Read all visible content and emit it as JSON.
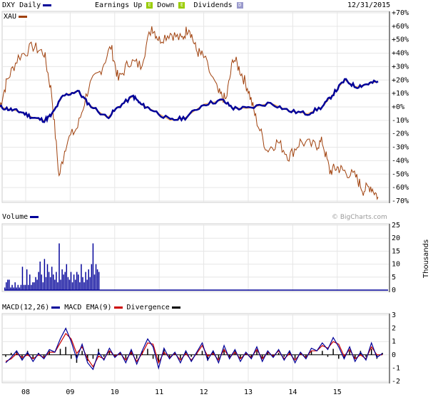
{
  "header": {
    "symbol": "DXY Daily",
    "earnings_up": "Earnings Up",
    "earnings_down": "Down",
    "dividends": "Dividends",
    "date": "12/31/2015",
    "earnings_glyph": "E",
    "dividend_glyph": "D",
    "compare": "XAU",
    "watermark": "© BigCharts.com"
  },
  "colors": {
    "dxy": "#000099",
    "xau": "#a0410d",
    "macd": "#000099",
    "ema": "#cc0000",
    "divergence": "#000000",
    "grid": "#e6e6e6",
    "earnings_up": "#99cc00",
    "dividend": "#9999cc"
  },
  "chart_data": [
    {
      "type": "line",
      "title": "",
      "y_unit": "%",
      "ylim": [
        -70,
        70
      ],
      "yticks": [
        "+70%",
        "+60%",
        "+50%",
        "+40%",
        "+30%",
        "+20%",
        "+10%",
        "+0%",
        "-10%",
        "-20%",
        "-30%",
        "-40%",
        "-50%",
        "-60%",
        "-70%"
      ],
      "grid": true,
      "x_ticks": [
        "08",
        "09",
        "10",
        "11",
        "12",
        "13",
        "14",
        "15"
      ],
      "x_range": [
        "2007-06",
        "2015-12"
      ],
      "series": [
        {
          "name": "DXY",
          "points": [
            [
              "2007-06",
              0
            ],
            [
              "2007-09",
              -2
            ],
            [
              "2007-12",
              -4
            ],
            [
              "2008-03",
              -8
            ],
            [
              "2008-06",
              -10
            ],
            [
              "2008-08",
              -6
            ],
            [
              "2008-11",
              8
            ],
            [
              "2009-03",
              12
            ],
            [
              "2009-06",
              2
            ],
            [
              "2009-11",
              -8
            ],
            [
              "2010-02",
              0
            ],
            [
              "2010-06",
              8
            ],
            [
              "2010-08",
              2
            ],
            [
              "2010-11",
              -2
            ],
            [
              "2011-04",
              -10
            ],
            [
              "2011-08",
              -8
            ],
            [
              "2012-01",
              2
            ],
            [
              "2012-06",
              5
            ],
            [
              "2012-09",
              -1
            ],
            [
              "2013-01",
              -1
            ],
            [
              "2013-07",
              3
            ],
            [
              "2013-12",
              -3
            ],
            [
              "2014-05",
              -5
            ],
            [
              "2014-09",
              0
            ],
            [
              "2014-12",
              10
            ],
            [
              "2015-03",
              20
            ],
            [
              "2015-06",
              15
            ],
            [
              "2015-09",
              17
            ],
            [
              "2015-12",
              19
            ]
          ]
        },
        {
          "name": "XAU",
          "points": [
            [
              "2007-06",
              0
            ],
            [
              "2007-08",
              20
            ],
            [
              "2007-11",
              37
            ],
            [
              "2008-03",
              45
            ],
            [
              "2008-06",
              40
            ],
            [
              "2008-08",
              10
            ],
            [
              "2008-10",
              -52
            ],
            [
              "2008-12",
              -26
            ],
            [
              "2009-03",
              -15
            ],
            [
              "2009-06",
              15
            ],
            [
              "2009-09",
              26
            ],
            [
              "2009-12",
              45
            ],
            [
              "2010-02",
              20
            ],
            [
              "2010-05",
              34
            ],
            [
              "2010-08",
              31
            ],
            [
              "2010-11",
              60
            ],
            [
              "2011-01",
              50
            ],
            [
              "2011-04",
              55
            ],
            [
              "2011-07",
              50
            ],
            [
              "2011-09",
              60
            ],
            [
              "2011-11",
              42
            ],
            [
              "2012-01",
              37
            ],
            [
              "2012-05",
              10
            ],
            [
              "2012-07",
              5
            ],
            [
              "2012-09",
              37
            ],
            [
              "2012-11",
              26
            ],
            [
              "2013-01",
              13
            ],
            [
              "2013-03",
              -8
            ],
            [
              "2013-06",
              -32
            ],
            [
              "2013-09",
              -26
            ],
            [
              "2013-12",
              -37
            ],
            [
              "2014-03",
              -26
            ],
            [
              "2014-07",
              -29
            ],
            [
              "2014-09",
              -26
            ],
            [
              "2014-11",
              -48
            ],
            [
              "2015-01",
              -45
            ],
            [
              "2015-03",
              -48
            ],
            [
              "2015-06",
              -52
            ],
            [
              "2015-08",
              -62
            ],
            [
              "2015-10",
              -59
            ],
            [
              "2015-12",
              -67
            ]
          ]
        }
      ]
    },
    {
      "type": "bar",
      "title": "Volume",
      "ylabel": "Thousands",
      "ylim": [
        0,
        25
      ],
      "yticks": [
        "25",
        "20",
        "15",
        "10",
        "5",
        "0"
      ],
      "x_range": [
        "2007-06",
        "2009-09"
      ],
      "values": [
        1,
        3,
        4,
        4,
        1,
        2,
        1,
        3,
        1,
        2,
        1,
        2,
        9,
        2,
        2,
        8,
        2,
        6,
        2,
        3,
        3,
        5,
        4,
        7,
        11,
        6,
        3,
        12,
        5,
        10,
        7,
        5,
        9,
        6,
        4,
        7,
        3,
        18,
        4,
        8,
        6,
        7,
        10,
        5,
        4,
        7,
        3,
        6,
        4,
        7,
        6,
        3,
        10,
        5,
        3,
        7,
        4,
        8,
        5,
        10,
        18,
        6,
        10,
        8,
        7
      ],
      "after_values": 0
    },
    {
      "type": "line",
      "title": "MACD",
      "ylim": [
        -2,
        3
      ],
      "yticks": [
        "3",
        "2",
        "1",
        "0",
        "-1",
        "-2"
      ],
      "series": [
        {
          "name": "MACD(12,26)",
          "values": [
            -0.6,
            -0.2,
            0.3,
            -0.4,
            0.2,
            -0.5,
            0.1,
            -0.3,
            0.4,
            0.2,
            1.2,
            2.0,
            1.0,
            -0.3,
            0.8,
            -0.6,
            -1.1,
            0.2,
            -0.4,
            0.5,
            -0.2,
            0.2,
            -0.6,
            0.4,
            -0.7,
            0.3,
            1.2,
            0.6,
            -1.0,
            0.5,
            -0.3,
            0.2,
            -0.6,
            0.3,
            -0.5,
            0.2,
            0.9,
            -0.4,
            0.3,
            -0.6,
            0.7,
            -0.3,
            0.4,
            -0.5,
            0.2,
            -0.3,
            0.6,
            -0.5,
            0.3,
            -0.2,
            0.4,
            -0.4,
            0.3,
            -0.6,
            0.2,
            -0.3,
            0.5,
            0.3,
            0.9,
            0.4,
            1.3,
            0.6,
            -0.3,
            0.6,
            -0.5,
            0.2,
            -0.4,
            0.9,
            -0.2,
            0.1
          ]
        },
        {
          "name": "MACD EMA(9)",
          "values": [
            -0.5,
            -0.3,
            0.1,
            -0.2,
            0.0,
            -0.3,
            0.0,
            -0.2,
            0.2,
            0.2,
            0.9,
            1.6,
            1.2,
            0.1,
            0.6,
            -0.3,
            -0.9,
            -0.1,
            -0.3,
            0.3,
            -0.1,
            0.1,
            -0.4,
            0.2,
            -0.5,
            0.1,
            0.9,
            0.8,
            -0.6,
            0.2,
            -0.2,
            0.1,
            -0.4,
            0.1,
            -0.4,
            0.1,
            0.7,
            -0.1,
            0.1,
            -0.4,
            0.4,
            -0.2,
            0.2,
            -0.3,
            0.1,
            -0.2,
            0.4,
            -0.3,
            0.2,
            -0.1,
            0.3,
            -0.3,
            0.1,
            -0.4,
            0.1,
            -0.2,
            0.3,
            0.3,
            0.7,
            0.5,
            1.0,
            0.8,
            -0.1,
            0.4,
            -0.3,
            0.0,
            -0.3,
            0.6,
            0.0,
            0.0
          ]
        },
        {
          "name": "Divergence"
        }
      ]
    }
  ]
}
